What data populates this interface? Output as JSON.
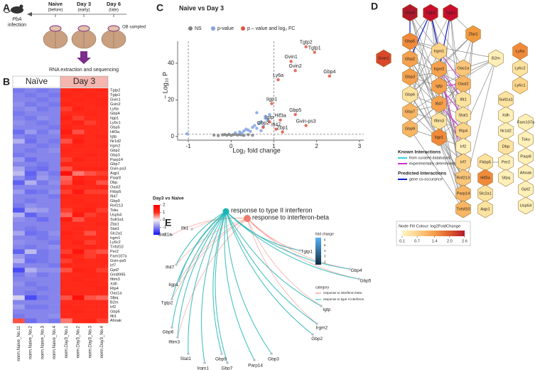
{
  "panel_a": {
    "letter": "A",
    "infection": [
      "PbA",
      "infection"
    ],
    "timepoints": [
      {
        "name": "Naive",
        "note": "(before)",
        "color": "#111111"
      },
      {
        "name": "Day 3",
        "note": "(early)",
        "color": "#d7191c"
      },
      {
        "name": "Day 6",
        "note": "(late)",
        "color": "#d7191c"
      }
    ],
    "sampled": "OB sampled",
    "step": "RNA extraction and sequencing"
  },
  "panel_b": {
    "letter": "B",
    "groups": [
      "Naïve",
      "Day 3"
    ],
    "genes": [
      "Tgtp2",
      "Tgtp1",
      "Gvin1",
      "Gvin2",
      "Ly6a",
      "Gbp4",
      "Iigp1",
      "Ly6c1",
      "Gbp5",
      "Hif3a",
      "Igtp",
      "Nr1d2",
      "Irgm2",
      "Gbp2",
      "Gbp3",
      "Parp14",
      "Gbp7",
      "Gvin-ps3",
      "Aqp1",
      "Paqr8",
      "Dbp",
      "Oasl2",
      "Fkbp5",
      "Ifi47",
      "Gbp9",
      "Rnf213",
      "Tsku",
      "Usp54",
      "Sult1a1",
      "Zbp1",
      "Stat1",
      "Slc2a1",
      "Irgm1",
      "Ly6c2",
      "Tnfsf10",
      "Per2",
      "Fam107a",
      "Gvin-ps5",
      "Irf7",
      "Gpt2",
      "Gm8995",
      "Ifitm3",
      "Xdh",
      "Rtp4",
      "Oas1a",
      "Sfpq",
      "B2m",
      "Irf2",
      "Gbp6",
      "Ifit1",
      "Ahnak"
    ],
    "samples": [
      "norm.Naive_No.11",
      "norm.Naive_No.2",
      "norm.Naive_No.3",
      "norm.Naive_No.4",
      "norm.Day3_No.1",
      "norm.Day3_No.2",
      "norm.Day3_No.3",
      "norm.Day3_No.4"
    ],
    "values": [
      [
        -1.1,
        -1.0,
        -1.1,
        -1.0,
        1.0,
        1.1,
        1.0,
        1.1
      ],
      [
        -1.0,
        -1.1,
        -1.0,
        -1.1,
        1.1,
        1.0,
        1.1,
        1.0
      ],
      [
        -1.0,
        -1.0,
        -1.1,
        -1.0,
        1.0,
        1.1,
        1.0,
        1.1
      ],
      [
        -0.9,
        -1.1,
        -1.0,
        -1.1,
        1.1,
        1.0,
        1.0,
        1.1
      ],
      [
        -1.0,
        -0.9,
        -1.1,
        -1.0,
        0.9,
        1.2,
        1.0,
        1.0
      ],
      [
        -1.1,
        -1.0,
        -1.0,
        -1.0,
        1.0,
        1.0,
        1.1,
        1.0
      ],
      [
        -1.0,
        -1.1,
        -0.9,
        -1.0,
        1.2,
        0.9,
        1.0,
        1.0
      ],
      [
        -0.9,
        -1.0,
        -1.1,
        -1.0,
        1.0,
        1.2,
        0.9,
        1.0
      ],
      [
        -1.0,
        -1.0,
        -1.0,
        -1.1,
        1.1,
        1.0,
        1.0,
        1.0
      ],
      [
        -1.2,
        -0.8,
        -1.1,
        -0.9,
        1.3,
        0.8,
        1.0,
        1.0
      ],
      [
        -1.0,
        -1.1,
        -1.0,
        -1.0,
        1.0,
        1.1,
        1.0,
        1.1
      ],
      [
        -0.6,
        -1.2,
        -1.0,
        -1.1,
        0.8,
        1.3,
        1.0,
        1.0
      ],
      [
        -1.0,
        -1.0,
        -1.1,
        -1.0,
        1.0,
        1.1,
        1.0,
        1.1
      ],
      [
        -1.0,
        -1.1,
        -1.0,
        -0.9,
        1.1,
        1.0,
        1.0,
        1.0
      ],
      [
        -1.1,
        -1.0,
        -1.0,
        -1.0,
        1.0,
        1.0,
        1.1,
        1.0
      ],
      [
        -0.8,
        -1.2,
        -1.0,
        -1.0,
        0.9,
        1.2,
        1.0,
        1.0
      ],
      [
        -1.0,
        -1.0,
        -1.1,
        -1.0,
        1.1,
        1.0,
        1.0,
        1.0
      ],
      [
        -0.7,
        -1.1,
        -1.2,
        -1.0,
        0.8,
        1.1,
        1.1,
        1.1
      ],
      [
        -0.5,
        -1.3,
        -0.9,
        -1.1,
        1.6,
        0.6,
        0.8,
        0.9
      ],
      [
        -0.9,
        -1.2,
        -0.8,
        -1.0,
        0.7,
        1.2,
        1.0,
        1.0
      ],
      [
        -1.3,
        -0.6,
        -1.1,
        -0.9,
        0.8,
        1.3,
        1.1,
        0.8
      ],
      [
        -1.0,
        -1.0,
        -1.0,
        -1.0,
        1.0,
        1.0,
        1.0,
        1.1
      ],
      [
        -0.8,
        -1.2,
        -1.1,
        -0.9,
        0.9,
        1.4,
        0.9,
        0.9
      ],
      [
        -1.0,
        -1.0,
        -1.0,
        -1.1,
        1.1,
        1.0,
        1.0,
        1.0
      ],
      [
        -1.0,
        -1.1,
        -1.0,
        -1.0,
        1.0,
        1.1,
        1.0,
        1.0
      ],
      [
        -1.1,
        -0.9,
        -1.0,
        -1.0,
        1.0,
        1.0,
        1.1,
        1.0
      ],
      [
        -1.4,
        -0.7,
        -0.8,
        -1.0,
        0.9,
        1.1,
        1.2,
        0.9
      ],
      [
        -0.6,
        -1.3,
        -1.0,
        -1.0,
        0.7,
        1.4,
        0.9,
        1.0
      ],
      [
        -0.9,
        -1.0,
        -1.2,
        -1.0,
        1.3,
        0.8,
        1.0,
        1.0
      ],
      [
        -1.0,
        -1.0,
        -1.0,
        -1.0,
        1.0,
        1.0,
        1.0,
        1.1
      ],
      [
        -1.0,
        -1.1,
        -1.0,
        -1.0,
        1.0,
        1.1,
        1.0,
        1.0
      ],
      [
        -0.7,
        -1.2,
        -1.1,
        -0.9,
        1.2,
        1.0,
        0.8,
        1.0
      ],
      [
        -1.0,
        -1.0,
        -1.1,
        -1.0,
        1.1,
        1.0,
        1.0,
        1.0
      ],
      [
        -0.9,
        -1.0,
        -1.0,
        -1.1,
        1.0,
        1.2,
        0.9,
        1.0
      ],
      [
        -1.0,
        -1.1,
        -1.0,
        -0.9,
        1.0,
        1.0,
        1.1,
        1.0
      ],
      [
        -1.3,
        -0.5,
        -1.1,
        -1.0,
        0.9,
        1.5,
        0.9,
        0.8
      ],
      [
        -0.8,
        -1.1,
        -1.1,
        -1.0,
        1.2,
        1.0,
        0.9,
        1.0
      ],
      [
        -0.6,
        -1.2,
        -1.1,
        -1.0,
        0.9,
        1.1,
        1.0,
        1.1
      ],
      [
        -1.0,
        -1.0,
        -1.0,
        -1.1,
        1.1,
        1.0,
        1.0,
        1.0
      ],
      [
        -1.5,
        -0.6,
        -0.9,
        -0.9,
        0.8,
        1.2,
        1.1,
        0.9
      ],
      [
        -1.1,
        -0.9,
        -1.1,
        -1.0,
        1.0,
        1.0,
        1.1,
        1.0
      ],
      [
        -1.0,
        -1.0,
        -1.0,
        -1.0,
        1.0,
        1.1,
        1.0,
        1.0
      ],
      [
        -0.9,
        -1.1,
        -1.0,
        -1.0,
        1.0,
        1.0,
        1.1,
        1.0
      ],
      [
        -1.0,
        -1.0,
        -1.1,
        -1.0,
        1.0,
        1.0,
        1.0,
        1.1
      ],
      [
        -1.0,
        -1.1,
        -1.0,
        -1.0,
        1.1,
        1.0,
        1.0,
        1.0
      ],
      [
        -0.3,
        -1.5,
        -1.1,
        -1.0,
        0.8,
        1.6,
        0.8,
        0.7
      ],
      [
        -1.0,
        -1.0,
        -1.0,
        -1.0,
        1.0,
        1.0,
        1.0,
        1.0
      ],
      [
        -0.8,
        -1.1,
        -1.1,
        -1.0,
        1.1,
        1.0,
        1.0,
        1.0
      ],
      [
        -1.0,
        -1.0,
        -1.0,
        -1.0,
        1.0,
        1.1,
        1.0,
        1.0
      ],
      [
        -1.1,
        -1.0,
        -1.0,
        -0.9,
        1.0,
        1.0,
        1.0,
        1.0
      ],
      [
        0.8,
        -1.2,
        -1.0,
        -1.1,
        0.6,
        1.0,
        1.1,
        0.9
      ]
    ],
    "legend_title": "Day3 vs Naive",
    "lim": [
      -2,
      2
    ],
    "ticks": [
      2,
      1,
      0,
      -1,
      -2
    ],
    "colors": [
      "#1010ff",
      "#8585ec",
      "#f5f0f0",
      "#ff2a1a",
      "#ff0000"
    ]
  },
  "chart_data": {
    "type": "scatter",
    "letter": "C",
    "title": "Naive vs Day 3",
    "x_label": "Log₂ fold change",
    "y_label": "− Log₁₀ P",
    "xlim": [
      -1.25,
      3.1
    ],
    "xticks": [
      -1,
      0,
      1,
      2,
      3
    ],
    "ylim": [
      -2,
      52
    ],
    "yticks": [
      0,
      20,
      40
    ],
    "thresholds": {
      "x": [
        -1,
        1
      ],
      "y": 1.3
    },
    "series": [
      {
        "name": "NS",
        "color": "#808080",
        "x": [
          -0.3,
          -0.2,
          -0.15,
          -0.1,
          -0.05,
          0,
          0.05,
          0.1,
          0.15,
          0.2,
          0.25,
          0.3,
          0.4,
          0.5,
          -0.4
        ],
        "values": [
          0.5,
          0.9,
          1.1,
          0.7,
          1.2,
          0.6,
          1.0,
          1.2,
          0.8,
          1.1,
          0.9,
          0.6,
          1.0,
          0.7,
          0.8
        ]
      },
      {
        "name": "p-value",
        "color": "#7fa3e0",
        "x": [
          -1.03,
          0.1,
          0.2,
          0.3,
          0.35,
          0.4,
          0.5,
          0.55,
          0.6,
          0.65,
          0.7,
          0.75,
          0.8,
          0.85,
          0.9,
          0.6,
          0.45,
          0.7,
          0.8,
          0.25
        ],
        "values": [
          1.5,
          2,
          2.5,
          3,
          4,
          3.5,
          5,
          6,
          4.5,
          7,
          8,
          5.5,
          10,
          9,
          12,
          13,
          2.8,
          3.2,
          11,
          1.8
        ]
      },
      {
        "name": "p – value and log₂ FC",
        "color": "#e0533f",
        "labels": [
          "Tgtp2",
          "Tgtp1",
          "Gvin1",
          "Gvin2",
          "Ly6a",
          "Gbp4",
          "Iigp1",
          "Gbp5",
          "Hif3a",
          "Igtp",
          "Gbp2",
          "Ifi47",
          "Zbp1",
          "Gvin-ps3"
        ],
        "x": [
          1.75,
          1.95,
          1.4,
          1.5,
          1.1,
          2.3,
          0.95,
          1.5,
          1.15,
          0.9,
          0.75,
          1.05,
          1.2,
          1.75
        ],
        "values": [
          49,
          46,
          41,
          36,
          31,
          33,
          18,
          12,
          9,
          8,
          5,
          4,
          2.5,
          6
        ]
      }
    ]
  },
  "panel_d": {
    "letter": "D",
    "nodes": [
      {
        "label": "Gbp4",
        "color": "#b2182b"
      },
      {
        "label": "Tgtp2",
        "color": "#c8102e"
      },
      {
        "label": "Tgtp1",
        "color": "#c8102e"
      },
      {
        "label": "Gvin1",
        "color": "#d9472a"
      },
      {
        "label": "Zbp1",
        "color": "#f29a3e"
      },
      {
        "label": "Ly6a",
        "color": "#f08a3a"
      },
      {
        "label": "Ly6c2",
        "color": "#fde3a0"
      },
      {
        "label": "Ly6c1",
        "color": "#fdd68a"
      },
      {
        "label": "Gbp5",
        "color": "#f08a3a"
      },
      {
        "label": "Gbp2",
        "color": "#f5a14e"
      },
      {
        "label": "Gbp3",
        "color": "#f5a14e"
      },
      {
        "label": "Gbp6",
        "color": "#fde3a0"
      },
      {
        "label": "Gbp7",
        "color": "#f8b563"
      },
      {
        "label": "Gbp9",
        "color": "#f8b563"
      },
      {
        "label": "Irgm1",
        "color": "#fcd38a"
      },
      {
        "label": "Irgm2",
        "color": "#f5a14e"
      },
      {
        "label": "Igtp",
        "color": "#f5a14e"
      },
      {
        "label": "Ifi47",
        "color": "#f5a14e"
      },
      {
        "label": "Ifitm3",
        "color": "#fde3a0"
      },
      {
        "label": "Iigp1",
        "color": "#f08a3a"
      },
      {
        "label": "Oas1a",
        "color": "#fbc57a"
      },
      {
        "label": "Oasl2",
        "color": "#f8b563"
      },
      {
        "label": "Ifit1",
        "color": "#fde3a0"
      },
      {
        "label": "Stat1",
        "color": "#fde3a0"
      },
      {
        "label": "Rtp4",
        "color": "#fcd38a"
      },
      {
        "label": "Irf2",
        "color": "#fff0b8"
      },
      {
        "label": "Irf7",
        "color": "#fcd38a"
      },
      {
        "label": "Rnf213",
        "color": "#fbc57a"
      },
      {
        "label": "Parp14",
        "color": "#f8b563"
      },
      {
        "label": "Tnfsf10",
        "color": "#f8b563"
      },
      {
        "label": "B2m",
        "color": "#fff0b8"
      },
      {
        "label": "Fkbp5",
        "color": "#fde3a0"
      },
      {
        "label": "Hif3a",
        "color": "#f08a3a"
      },
      {
        "label": "Slc2a1",
        "color": "#fde3a0"
      },
      {
        "label": "Aqp1",
        "color": "#fde3a0"
      },
      {
        "label": "Sult1a1",
        "color": "#fde3a0"
      },
      {
        "label": "Xdh",
        "color": "#fff0b8"
      },
      {
        "label": "Nr1d2",
        "color": "#fff0b8"
      },
      {
        "label": "Dbp",
        "color": "#fde3a0"
      },
      {
        "label": "Per2",
        "color": "#fff0b8"
      },
      {
        "label": "Sfpq",
        "color": "#fff0b8"
      },
      {
        "label": "Fam107a",
        "color": "#fff0b8"
      },
      {
        "label": "Tsku",
        "color": "#fff0b8"
      },
      {
        "label": "Paqr8",
        "color": "#fff0b8"
      },
      {
        "label": "Ahnak",
        "color": "#fff0b8"
      },
      {
        "label": "Gpt2",
        "color": "#fff0b8"
      },
      {
        "label": "Usp54",
        "color": "#fff0b8"
      }
    ],
    "known_title": "Known Interactions",
    "known": [
      {
        "label": "from curated databases",
        "color": "#2fd6e0"
      },
      {
        "label": "experimentally determined",
        "color": "#d12fd1"
      }
    ],
    "predicted_title": "Predicted Interactions",
    "predicted": [
      {
        "label": "gene co-occurance",
        "color": "#0b18d6"
      }
    ],
    "scale_title": "Node Fill Colour: log2FoldChange",
    "scale_lim": [
      0.1,
      2.6
    ],
    "scale_ticks": [
      0.1,
      0.7,
      1.4,
      {
        "value": 2,
        "label": "2.0"
      },
      2.6
    ],
    "scale_colors": [
      "#fff5c0",
      "#fdd08a",
      "#f5a14e",
      "#e0602c",
      "#b2182b"
    ]
  },
  "panel_e": {
    "letter": "E",
    "hubs": [
      {
        "label": "response to type II interferon",
        "color": "#1bb3b3"
      },
      {
        "label": "response to interferon-beta",
        "color": "#f07b6e"
      }
    ],
    "genes": [
      "Ifit1",
      "Oas1a",
      "Ifi47",
      "Iigp1",
      "Tgtp2",
      "Gbp6",
      "Ifitm3",
      "Stat1",
      "Irgm1",
      "Gbp9",
      "Gbp7",
      "Parp14",
      "Gbp3",
      "Gbp2",
      "Irgm2",
      "Igtp",
      "Gbp5",
      "Gbp4",
      "Tgtp1"
    ],
    "fc_title": "fold change",
    "fc_lim": [
      1.5,
      6.4
    ],
    "fc_ticks": [
      6,
      5,
      4,
      3,
      2
    ],
    "fc_colors": [
      "#132b43",
      "#56b1f7"
    ],
    "category_title": "category"
  }
}
